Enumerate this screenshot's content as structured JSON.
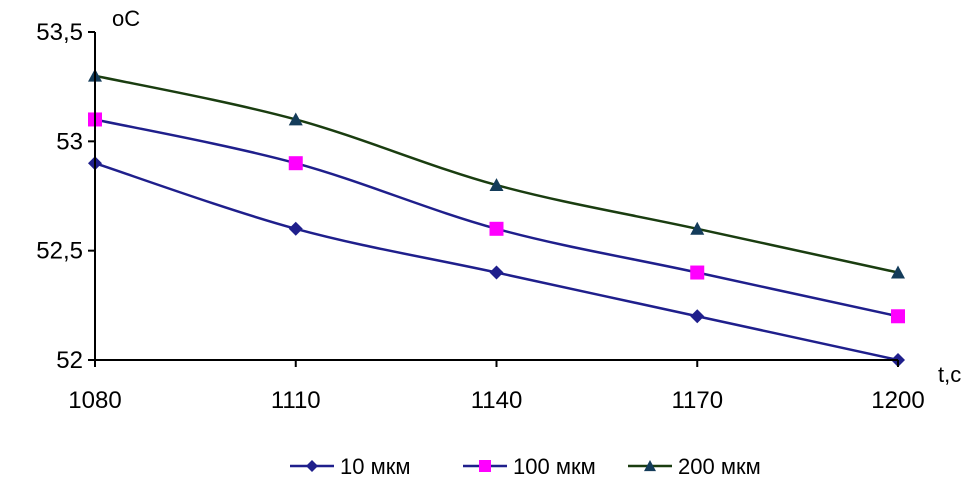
{
  "chart_data": {
    "type": "line",
    "title": "",
    "xlabel": "t,c",
    "ylabel": "oC",
    "categories": [
      "1080",
      "1110",
      "1140",
      "1170",
      "1200"
    ],
    "x": [
      1080,
      1110,
      1140,
      1170,
      1200
    ],
    "yticks": [
      "52",
      "52,5",
      "53",
      "53,5"
    ],
    "ylim": [
      52,
      53.5
    ],
    "grid": false,
    "legend_position": "bottom",
    "series": [
      {
        "name": "10 мкм",
        "values": [
          52.9,
          52.6,
          52.4,
          52.2,
          52.0
        ],
        "color": "#1f1f8c",
        "marker": "diamond"
      },
      {
        "name": "100 мкм",
        "values": [
          53.1,
          52.9,
          52.6,
          52.4,
          52.2
        ],
        "color": "#ff00ff",
        "line_color": "#1f1f8c",
        "marker": "square"
      },
      {
        "name": "200 мкм",
        "values": [
          53.3,
          53.1,
          52.8,
          52.6,
          52.4
        ],
        "color": "#143c5a",
        "line_color": "#1a3d10",
        "marker": "triangle"
      }
    ]
  }
}
